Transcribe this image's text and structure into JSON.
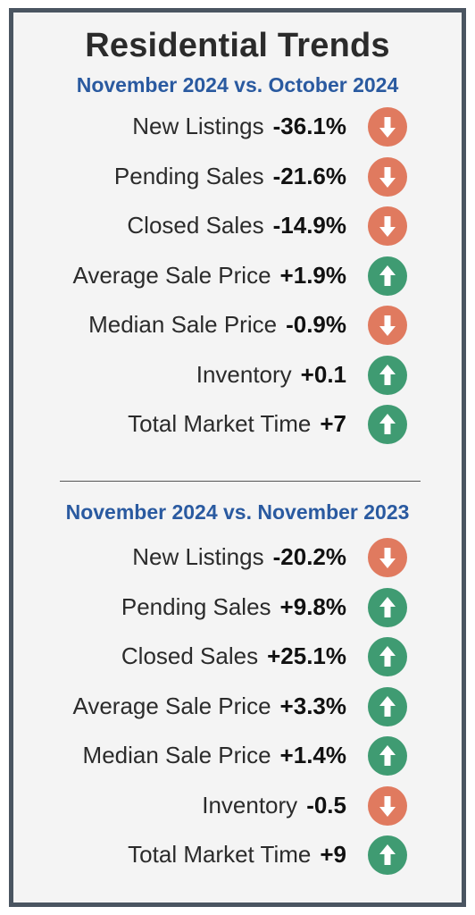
{
  "title": "Residential Trends",
  "sections": [
    {
      "subtitle": "November 2024 vs. October 2024",
      "rows": [
        {
          "label": "New Listings",
          "value": "-36.1%",
          "direction": "down"
        },
        {
          "label": "Pending Sales",
          "value": "-21.6%",
          "direction": "down"
        },
        {
          "label": "Closed Sales",
          "value": "-14.9%",
          "direction": "down"
        },
        {
          "label": "Average Sale Price",
          "value": "+1.9%",
          "direction": "up"
        },
        {
          "label": "Median Sale Price",
          "value": "-0.9%",
          "direction": "down"
        },
        {
          "label": "Inventory",
          "value": "+0.1",
          "direction": "up"
        },
        {
          "label": "Total Market Time",
          "value": "+7",
          "direction": "up"
        }
      ]
    },
    {
      "subtitle": "November 2024 vs. November 2023",
      "rows": [
        {
          "label": "New Listings",
          "value": "-20.2%",
          "direction": "down"
        },
        {
          "label": "Pending Sales",
          "value": "+9.8%",
          "direction": "up"
        },
        {
          "label": "Closed Sales",
          "value": "+25.1%",
          "direction": "up"
        },
        {
          "label": "Average Sale Price",
          "value": "+3.3%",
          "direction": "up"
        },
        {
          "label": "Median Sale Price",
          "value": "+1.4%",
          "direction": "up"
        },
        {
          "label": "Inventory",
          "value": "-0.5",
          "direction": "down"
        },
        {
          "label": "Total Market Time",
          "value": "+9",
          "direction": "up"
        }
      ]
    }
  ],
  "colors": {
    "down": "#e07a5f",
    "up": "#3f9b72",
    "subtitle": "#2a5aa0",
    "border": "#4a5561"
  },
  "icons": {
    "up": "arrow-up-icon",
    "down": "arrow-down-icon"
  }
}
